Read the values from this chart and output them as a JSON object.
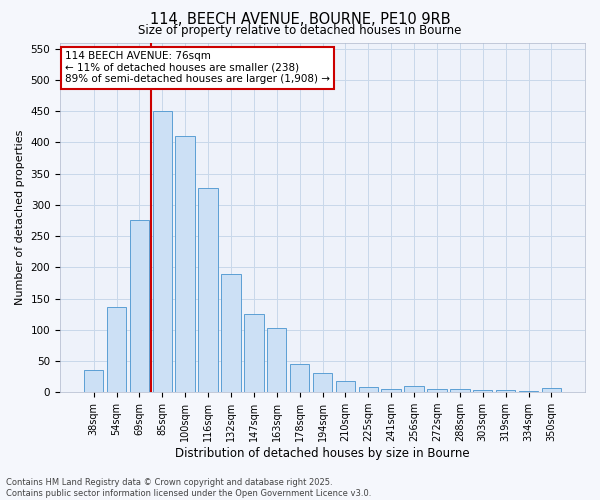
{
  "title_line1": "114, BEECH AVENUE, BOURNE, PE10 9RB",
  "title_line2": "Size of property relative to detached houses in Bourne",
  "xlabel": "Distribution of detached houses by size in Bourne",
  "ylabel": "Number of detached properties",
  "categories": [
    "38sqm",
    "54sqm",
    "69sqm",
    "85sqm",
    "100sqm",
    "116sqm",
    "132sqm",
    "147sqm",
    "163sqm",
    "178sqm",
    "194sqm",
    "210sqm",
    "225sqm",
    "241sqm",
    "256sqm",
    "272sqm",
    "288sqm",
    "303sqm",
    "319sqm",
    "334sqm",
    "350sqm"
  ],
  "values": [
    35,
    137,
    275,
    450,
    410,
    327,
    190,
    125,
    103,
    45,
    30,
    18,
    8,
    5,
    10,
    5,
    5,
    4,
    3,
    2,
    6
  ],
  "bar_color": "#cce0f5",
  "bar_edge_color": "#5b9fd4",
  "grid_color": "#c8d8ea",
  "background_color": "#eef2fa",
  "vline_color": "#cc0000",
  "annotation_text": "114 BEECH AVENUE: 76sqm\n← 11% of detached houses are smaller (238)\n89% of semi-detached houses are larger (1,908) →",
  "annotation_box_color": "#ffffff",
  "annotation_edge_color": "#cc0000",
  "footer_text": "Contains HM Land Registry data © Crown copyright and database right 2025.\nContains public sector information licensed under the Open Government Licence v3.0.",
  "ylim": [
    0,
    560
  ],
  "yticks": [
    0,
    50,
    100,
    150,
    200,
    250,
    300,
    350,
    400,
    450,
    500,
    550
  ],
  "fig_width": 6.0,
  "fig_height": 5.0,
  "dpi": 100
}
